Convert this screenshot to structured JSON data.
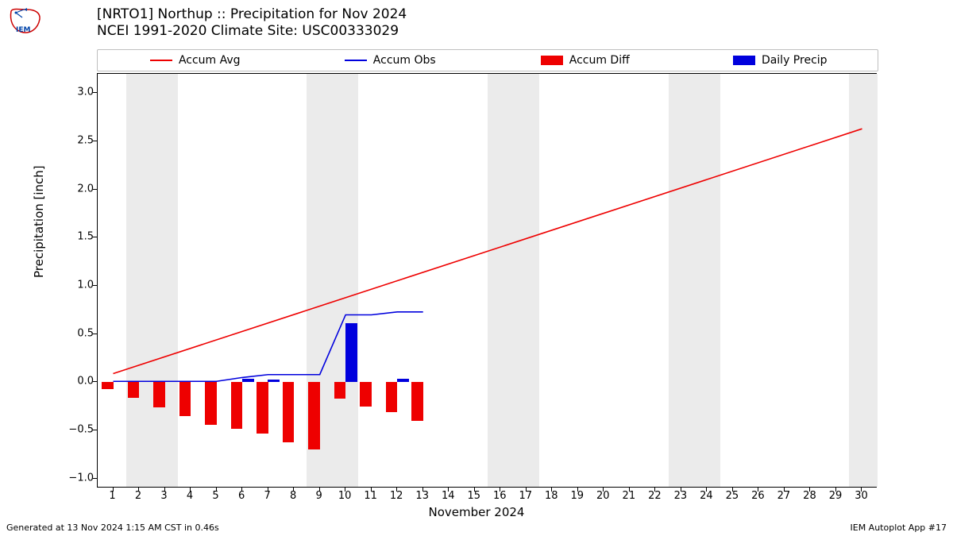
{
  "title_line1": "[NRTO1] Northup :: Precipitation for Nov 2024",
  "title_line2": "NCEI 1991-2020 Climate Site: USC00333029",
  "ylabel": "Precipitation [inch]",
  "xlabel": "November 2024",
  "footer_left": "Generated at 13 Nov 2024 1:15 AM CST in 0.46s",
  "footer_right": "IEM Autoplot App #17",
  "legend": {
    "items": [
      {
        "label": "Accum Avg",
        "type": "line",
        "color": "#ee0000"
      },
      {
        "label": "Accum Obs",
        "type": "line",
        "color": "#0000dd"
      },
      {
        "label": "Accum Diff",
        "type": "rect",
        "color": "#ee0000"
      },
      {
        "label": "Daily Precip",
        "type": "rect",
        "color": "#0000dd"
      }
    ]
  },
  "chart": {
    "type": "bar+line",
    "xlim": [
      0.4,
      30.6
    ],
    "ylim": [
      -1.1,
      3.2
    ],
    "yticks": [
      -1.0,
      -0.5,
      0.0,
      0.5,
      1.0,
      1.5,
      2.0,
      2.5,
      3.0
    ],
    "xtick_days": [
      1,
      2,
      3,
      4,
      5,
      6,
      7,
      8,
      9,
      10,
      11,
      12,
      13,
      14,
      15,
      16,
      17,
      18,
      19,
      20,
      21,
      22,
      23,
      24,
      25,
      26,
      27,
      28,
      29,
      30
    ],
    "background_color": "#ffffff",
    "weekend_color": "#ebebeb",
    "weekend_bands": [
      [
        1.5,
        3.5
      ],
      [
        8.5,
        10.5
      ],
      [
        15.5,
        17.5
      ],
      [
        22.5,
        24.5
      ],
      [
        29.5,
        30.6
      ]
    ],
    "accum_avg": {
      "color": "#ee0000",
      "linewidth": 1.6,
      "x": [
        1,
        30
      ],
      "y": [
        0.09,
        2.63
      ]
    },
    "accum_obs": {
      "color": "#0000dd",
      "linewidth": 1.6,
      "x": [
        1,
        2,
        3,
        4,
        5,
        6,
        7,
        8,
        9,
        10,
        11,
        12,
        13
      ],
      "y": [
        0.01,
        0.01,
        0.01,
        0.01,
        0.01,
        0.05,
        0.08,
        0.08,
        0.08,
        0.7,
        0.7,
        0.73,
        0.73
      ]
    },
    "accum_diff": {
      "color": "#ee0000",
      "bar_width": 0.45,
      "x_offset": -0.22,
      "x": [
        1,
        2,
        3,
        4,
        5,
        6,
        7,
        8,
        9,
        10,
        11,
        12,
        13
      ],
      "y": [
        -0.07,
        -0.16,
        -0.26,
        -0.35,
        -0.44,
        -0.48,
        -0.53,
        -0.62,
        -0.7,
        -0.17,
        -0.25,
        -0.31,
        -0.4
      ]
    },
    "daily_precip": {
      "color": "#0000dd",
      "bar_width": 0.45,
      "x_offset": 0.22,
      "x": [
        6,
        7,
        10,
        12
      ],
      "y": [
        0.04,
        0.03,
        0.61,
        0.04
      ]
    }
  }
}
